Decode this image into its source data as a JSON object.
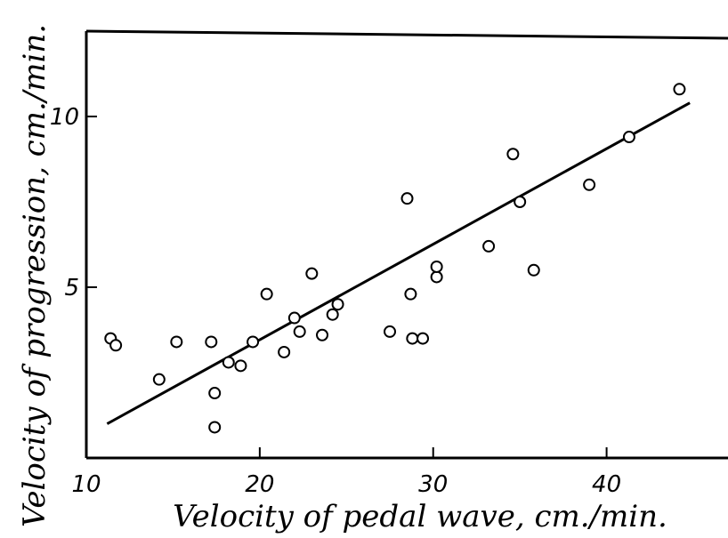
{
  "chart_data": {
    "type": "scatter",
    "title": "",
    "xlabel": "Velocity of pedal wave, cm./min.",
    "ylabel": "Velocity of progression, cm./min.",
    "xlim": [
      10,
      47
    ],
    "ylim": [
      0,
      12.5
    ],
    "x_ticks": [
      {
        "value": 10,
        "label": "10"
      },
      {
        "value": 20,
        "label": "20"
      },
      {
        "value": 30,
        "label": "30"
      },
      {
        "value": 40,
        "label": "40"
      }
    ],
    "y_ticks": [
      {
        "value": 5,
        "label": "5"
      },
      {
        "value": 10,
        "label": "10"
      }
    ],
    "grid": false,
    "series": [
      {
        "points": [
          [
            11.4,
            3.5
          ],
          [
            11.7,
            3.3
          ],
          [
            14.2,
            2.3
          ],
          [
            15.2,
            3.4
          ],
          [
            17.2,
            3.4
          ],
          [
            17.4,
            1.9
          ],
          [
            17.4,
            0.9
          ],
          [
            18.2,
            2.8
          ],
          [
            18.9,
            2.7
          ],
          [
            19.6,
            3.4
          ],
          [
            20.4,
            4.8
          ],
          [
            21.4,
            3.1
          ],
          [
            22.0,
            4.1
          ],
          [
            22.3,
            3.7
          ],
          [
            23.0,
            5.4
          ],
          [
            23.6,
            3.6
          ],
          [
            24.2,
            4.2
          ],
          [
            24.5,
            4.5
          ],
          [
            27.5,
            3.7
          ],
          [
            28.5,
            7.6
          ],
          [
            28.7,
            4.8
          ],
          [
            28.8,
            3.5
          ],
          [
            29.4,
            3.5
          ],
          [
            30.2,
            5.3
          ],
          [
            30.2,
            5.6
          ],
          [
            33.2,
            6.2
          ],
          [
            34.6,
            8.9
          ],
          [
            35.0,
            7.5
          ],
          [
            35.8,
            5.5
          ],
          [
            39.0,
            8.0
          ],
          [
            41.3,
            9.4
          ],
          [
            44.2,
            10.8
          ]
        ]
      }
    ],
    "fit_line": {
      "x": [
        11.2,
        44.8
      ],
      "y": [
        1.0,
        10.4
      ]
    }
  }
}
